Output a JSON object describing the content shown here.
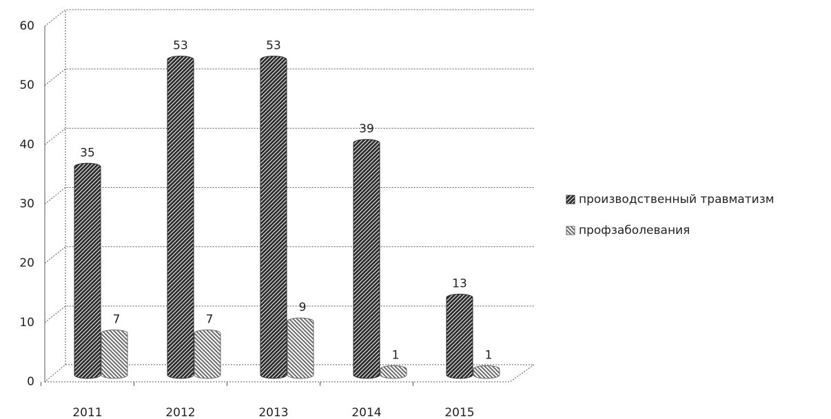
{
  "chart_data": {
    "type": "bar",
    "categories": [
      "2011",
      "2012",
      "2013",
      "2014",
      "2015"
    ],
    "series": [
      {
        "name": "производственный травматизм",
        "color": "#2e2e2e",
        "values": [
          35,
          53,
          53,
          39,
          13
        ]
      },
      {
        "name": "профзаболевания",
        "color": "#6a6a6a",
        "values": [
          7,
          7,
          9,
          1,
          1
        ]
      }
    ],
    "ylim": [
      0,
      60
    ],
    "yticks": [
      0,
      10,
      20,
      30,
      40,
      50,
      60
    ],
    "grid": true,
    "legend": "right"
  }
}
